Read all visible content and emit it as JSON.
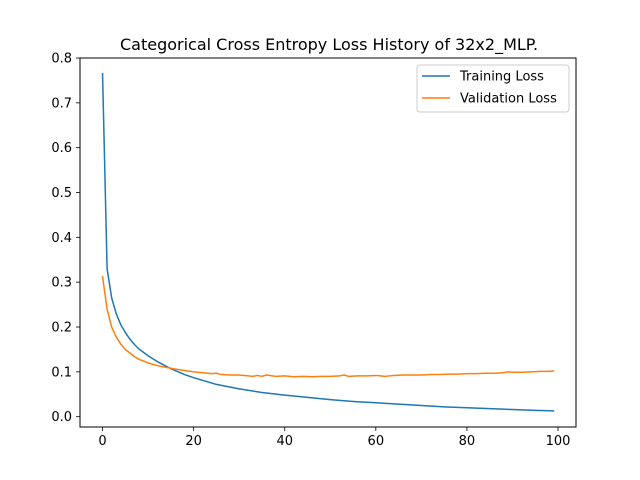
{
  "chart_data": {
    "type": "line",
    "title": "Categorical Cross Entropy Loss History of 32x2_MLP.",
    "xlabel": "",
    "ylabel": "",
    "xlim": [
      -4.95,
      103.95
    ],
    "ylim": [
      -0.023,
      0.8
    ],
    "x_ticks": [
      0,
      20,
      40,
      60,
      80,
      100
    ],
    "y_ticks": [
      0.0,
      0.1,
      0.2,
      0.3,
      0.4,
      0.5,
      0.6,
      0.7,
      0.8
    ],
    "y_tick_labels": [
      "0.0",
      "0.1",
      "0.2",
      "0.3",
      "0.4",
      "0.5",
      "0.6",
      "0.7",
      "0.8"
    ],
    "grid": false,
    "legend_position": "top-right",
    "series": [
      {
        "name": "Training Loss",
        "color": "#1f77b4",
        "x": [
          0,
          1,
          2,
          3,
          4,
          5,
          6,
          7,
          8,
          10,
          12,
          15,
          18,
          20,
          25,
          30,
          35,
          40,
          45,
          50,
          55,
          60,
          65,
          70,
          75,
          80,
          85,
          90,
          95,
          99
        ],
        "y": [
          0.765,
          0.33,
          0.265,
          0.23,
          0.205,
          0.188,
          0.173,
          0.161,
          0.151,
          0.136,
          0.123,
          0.107,
          0.094,
          0.087,
          0.072,
          0.062,
          0.054,
          0.048,
          0.043,
          0.038,
          0.034,
          0.031,
          0.028,
          0.025,
          0.022,
          0.02,
          0.018,
          0.016,
          0.014,
          0.013
        ]
      },
      {
        "name": "Validation Loss",
        "color": "#ff7f0e",
        "x": [
          0,
          1,
          2,
          3,
          4,
          5,
          6,
          7,
          8,
          9,
          10,
          11,
          12,
          13,
          14,
          15,
          16,
          18,
          20,
          22,
          24,
          25,
          26,
          28,
          30,
          32,
          33,
          34,
          35,
          36,
          38,
          40,
          42,
          44,
          46,
          48,
          50,
          52,
          53,
          54,
          56,
          58,
          60,
          62,
          64,
          66,
          68,
          70,
          72,
          74,
          76,
          78,
          80,
          82,
          84,
          86,
          88,
          89,
          90,
          92,
          94,
          96,
          98,
          99
        ],
        "y": [
          0.312,
          0.24,
          0.2,
          0.178,
          0.162,
          0.15,
          0.142,
          0.134,
          0.128,
          0.124,
          0.12,
          0.117,
          0.114,
          0.112,
          0.11,
          0.108,
          0.106,
          0.103,
          0.1,
          0.098,
          0.096,
          0.097,
          0.094,
          0.093,
          0.093,
          0.091,
          0.09,
          0.092,
          0.09,
          0.093,
          0.09,
          0.091,
          0.089,
          0.09,
          0.089,
          0.09,
          0.09,
          0.091,
          0.093,
          0.09,
          0.091,
          0.091,
          0.092,
          0.09,
          0.092,
          0.093,
          0.093,
          0.093,
          0.094,
          0.094,
          0.095,
          0.095,
          0.096,
          0.096,
          0.097,
          0.097,
          0.098,
          0.1,
          0.099,
          0.099,
          0.1,
          0.101,
          0.101,
          0.102
        ]
      }
    ]
  }
}
